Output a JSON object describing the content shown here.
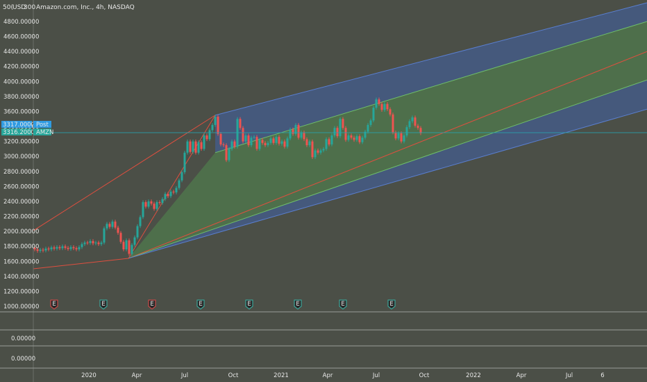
{
  "header": {
    "currency_prefix": "50(",
    "currency": "USD",
    "scale_value": "300",
    "title": "Amazon.com, Inc., 4h, NASDAQ"
  },
  "price_tags": [
    {
      "value": "3317.00000",
      "tag": "Post",
      "color": "#2f9be2",
      "price": 3317
    },
    {
      "value": "3316.20000",
      "tag": "AMZN",
      "color": "#26a69a",
      "price": 3316.2
    }
  ],
  "earnings_markers": [
    {
      "label": "E",
      "color": "#e04848",
      "x": 78
    },
    {
      "label": "E",
      "color": "#38b6a8",
      "x": 149
    },
    {
      "label": "E",
      "color": "#e04848",
      "x": 219
    },
    {
      "label": "E",
      "color": "#38b6a8",
      "x": 289
    },
    {
      "label": "E",
      "color": "#38b6a8",
      "x": 359
    },
    {
      "label": "E",
      "color": "#38b6a8",
      "x": 429
    },
    {
      "label": "E",
      "color": "#38b6a8",
      "x": 494
    },
    {
      "label": "E",
      "color": "#38b6a8",
      "x": 564
    }
  ],
  "sub_pane_labels": [
    "0.00000",
    "0.00000"
  ],
  "chart_data": {
    "type": "line",
    "ylim": [
      950,
      5000
    ],
    "y_ticks": [
      4800,
      4600,
      4400,
      4200,
      4000,
      3800,
      3600,
      3400,
      3200,
      3000,
      2800,
      2600,
      2400,
      2200,
      2000,
      1800,
      1600,
      1400,
      1200,
      1000
    ],
    "x_ticks": [
      "2020",
      "Apr",
      "Jul",
      "Oct",
      "2021",
      "Apr",
      "Jul",
      "Oct",
      "2022",
      "Apr",
      "Jul",
      "6"
    ],
    "series": [
      {
        "values": [
          [
            48,
            1780
          ],
          [
            52,
            1760
          ],
          [
            56,
            1740
          ],
          [
            60,
            1755
          ],
          [
            64,
            1745
          ],
          [
            68,
            1770
          ],
          [
            72,
            1760
          ],
          [
            76,
            1785
          ],
          [
            80,
            1770
          ],
          [
            84,
            1790
          ],
          [
            88,
            1775
          ],
          [
            92,
            1800
          ],
          [
            96,
            1780
          ],
          [
            100,
            1765
          ],
          [
            104,
            1790
          ],
          [
            108,
            1775
          ],
          [
            112,
            1760
          ],
          [
            116,
            1790
          ],
          [
            120,
            1830
          ],
          [
            124,
            1850
          ],
          [
            128,
            1845
          ],
          [
            132,
            1870
          ],
          [
            136,
            1840
          ],
          [
            140,
            1850
          ],
          [
            144,
            1830
          ],
          [
            148,
            1850
          ],
          [
            152,
            2040
          ],
          [
            156,
            2100
          ],
          [
            160,
            2060
          ],
          [
            164,
            2130
          ],
          [
            168,
            2050
          ],
          [
            172,
            1980
          ],
          [
            176,
            1860
          ],
          [
            180,
            1760
          ],
          [
            184,
            1880
          ],
          [
            188,
            1700
          ],
          [
            192,
            1820
          ],
          [
            196,
            1920
          ],
          [
            200,
            2070
          ],
          [
            204,
            2190
          ],
          [
            208,
            2390
          ],
          [
            212,
            2330
          ],
          [
            216,
            2400
          ],
          [
            220,
            2370
          ],
          [
            224,
            2300
          ],
          [
            228,
            2390
          ],
          [
            232,
            2380
          ],
          [
            236,
            2430
          ],
          [
            240,
            2500
          ],
          [
            244,
            2470
          ],
          [
            248,
            2530
          ],
          [
            252,
            2520
          ],
          [
            256,
            2580
          ],
          [
            260,
            2680
          ],
          [
            264,
            2790
          ],
          [
            268,
            3050
          ],
          [
            272,
            3200
          ],
          [
            276,
            3060
          ],
          [
            280,
            3200
          ],
          [
            284,
            3050
          ],
          [
            288,
            3190
          ],
          [
            292,
            3100
          ],
          [
            296,
            3280
          ],
          [
            300,
            3230
          ],
          [
            304,
            3350
          ],
          [
            308,
            3420
          ],
          [
            312,
            3530
          ],
          [
            316,
            3300
          ],
          [
            320,
            3160
          ],
          [
            324,
            3150
          ],
          [
            328,
            2950
          ],
          [
            332,
            3100
          ],
          [
            336,
            3200
          ],
          [
            340,
            3130
          ],
          [
            344,
            3500
          ],
          [
            348,
            3380
          ],
          [
            352,
            3200
          ],
          [
            356,
            3280
          ],
          [
            360,
            3150
          ],
          [
            364,
            3250
          ],
          [
            368,
            3260
          ],
          [
            372,
            3100
          ],
          [
            376,
            3220
          ],
          [
            380,
            3180
          ],
          [
            384,
            3150
          ],
          [
            388,
            3180
          ],
          [
            392,
            3240
          ],
          [
            396,
            3180
          ],
          [
            400,
            3260
          ],
          [
            404,
            3170
          ],
          [
            408,
            3200
          ],
          [
            412,
            3130
          ],
          [
            416,
            3240
          ],
          [
            420,
            3360
          ],
          [
            424,
            3300
          ],
          [
            428,
            3420
          ],
          [
            432,
            3250
          ],
          [
            436,
            3320
          ],
          [
            440,
            3230
          ],
          [
            444,
            3150
          ],
          [
            448,
            3200
          ],
          [
            452,
            2990
          ],
          [
            456,
            3080
          ],
          [
            460,
            3050
          ],
          [
            464,
            3080
          ],
          [
            468,
            3100
          ],
          [
            472,
            3230
          ],
          [
            476,
            3160
          ],
          [
            480,
            3280
          ],
          [
            484,
            3380
          ],
          [
            488,
            3270
          ],
          [
            492,
            3500
          ],
          [
            496,
            3380
          ],
          [
            500,
            3220
          ],
          [
            504,
            3280
          ],
          [
            508,
            3250
          ],
          [
            512,
            3220
          ],
          [
            516,
            3270
          ],
          [
            520,
            3190
          ],
          [
            524,
            3250
          ],
          [
            528,
            3330
          ],
          [
            532,
            3420
          ],
          [
            536,
            3480
          ],
          [
            540,
            3650
          ],
          [
            544,
            3760
          ],
          [
            548,
            3700
          ],
          [
            552,
            3620
          ],
          [
            556,
            3700
          ],
          [
            560,
            3630
          ],
          [
            564,
            3560
          ],
          [
            568,
            3320
          ],
          [
            572,
            3240
          ],
          [
            576,
            3310
          ],
          [
            580,
            3200
          ],
          [
            584,
            3280
          ],
          [
            588,
            3390
          ],
          [
            592,
            3470
          ],
          [
            596,
            3520
          ],
          [
            600,
            3410
          ],
          [
            604,
            3380
          ],
          [
            608,
            3310
          ]
        ]
      }
    ],
    "channel": {
      "upper": {
        "from": [
          310,
          3550
        ],
        "to": [
          932,
          5050
        ]
      },
      "upper_inner": {
        "from": [
          310,
          3050
        ],
        "to": [
          932,
          4800
        ]
      },
      "median": {
        "from": [
          185,
          1640
        ],
        "to": [
          932,
          4400
        ]
      },
      "lower_inner": {
        "from": [
          185,
          1640
        ],
        "to": [
          932,
          4020
        ]
      },
      "lower": {
        "from": [
          185,
          1640
        ],
        "to": [
          932,
          3630
        ]
      },
      "fork_left_upper": {
        "from": [
          48,
          2010
        ],
        "to": [
          310,
          3550
        ]
      },
      "fork_left_lower": {
        "from": [
          48,
          1500
        ],
        "to": [
          185,
          1640
        ]
      }
    }
  },
  "colors": {
    "background": "#4b4f47",
    "up_candle": "#26a69a",
    "down_candle": "#ef5350",
    "outer_band": "#4262a8",
    "inner_band": "#4f7a4c",
    "median": "#e04f3f",
    "axis_text": "#e8e8e8"
  }
}
